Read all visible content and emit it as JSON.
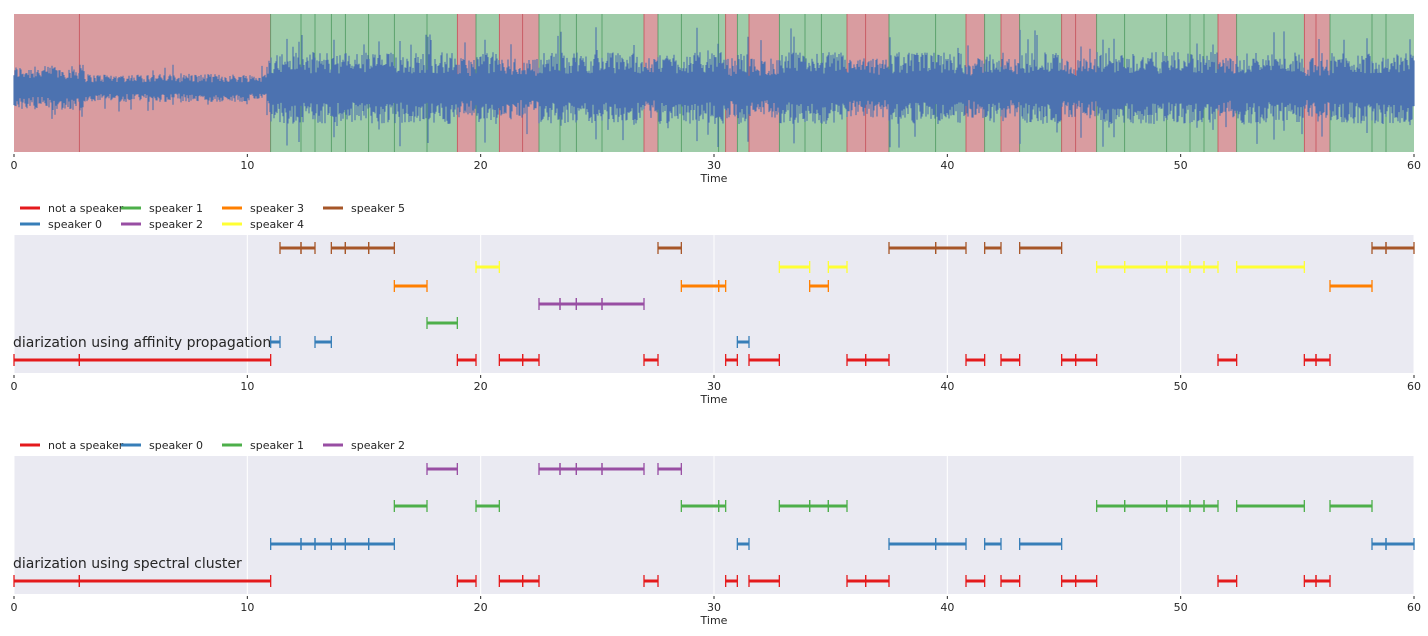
{
  "chart_data": [
    {
      "type": "area",
      "description_role": "waveform",
      "xlabel": "Time",
      "xlim": [
        0,
        60
      ],
      "xticks": [
        0,
        10,
        20,
        30,
        40,
        50,
        60
      ],
      "waveform_color": "#4c72b0",
      "segment_colors": {
        "speech": "#9fcca9",
        "nonspeech": "#d99ca0"
      },
      "nonspeech_segments": [
        [
          0,
          11.0
        ],
        [
          19.0,
          19.8
        ],
        [
          20.8,
          22.5
        ],
        [
          27.0,
          27.6
        ],
        [
          30.5,
          31.0
        ],
        [
          31.5,
          32.8
        ],
        [
          35.7,
          37.5
        ],
        [
          40.8,
          41.6
        ],
        [
          42.3,
          43.1
        ],
        [
          44.9,
          46.4
        ],
        [
          51.6,
          52.4
        ],
        [
          55.3,
          56.4
        ]
      ],
      "boundaries": [
        2.8,
        11.0,
        12.3,
        12.9,
        13.6,
        14.2,
        15.2,
        16.3,
        17.7,
        19.0,
        19.8,
        20.8,
        21.8,
        22.5,
        23.4,
        24.1,
        25.2,
        27.0,
        27.6,
        28.6,
        30.2,
        30.5,
        31.0,
        31.5,
        32.8,
        33.9,
        34.6,
        35.7,
        36.5,
        37.5,
        39.5,
        40.8,
        41.6,
        42.3,
        43.1,
        44.9,
        45.5,
        46.4,
        47.6,
        49.4,
        50.4,
        51.0,
        51.6,
        52.4,
        55.3,
        55.8,
        56.4,
        58.2,
        58.8
      ]
    },
    {
      "type": "gantt",
      "title": "diarization using affinity propagation",
      "xlabel": "Time",
      "xlim": [
        0,
        60
      ],
      "xticks": [
        0,
        10,
        20,
        30,
        40,
        50,
        60
      ],
      "legend": [
        {
          "label": "not a speaker",
          "color": "#e41a1c"
        },
        {
          "label": "speaker 0",
          "color": "#377eb8"
        },
        {
          "label": "speaker 1",
          "color": "#4daf4a"
        },
        {
          "label": "speaker 2",
          "color": "#984ea3"
        },
        {
          "label": "speaker 3",
          "color": "#ff7f00"
        },
        {
          "label": "speaker 4",
          "color": "#ffff33"
        },
        {
          "label": "speaker 5",
          "color": "#a65628"
        }
      ],
      "series": [
        {
          "name": "not a speaker",
          "segments": [
            [
              0,
              2.8
            ],
            [
              2.8,
              11.0
            ],
            [
              19.0,
              19.8
            ],
            [
              20.8,
              21.8
            ],
            [
              21.8,
              22.5
            ],
            [
              27.0,
              27.6
            ],
            [
              30.5,
              31.0
            ],
            [
              31.5,
              32.8
            ],
            [
              35.7,
              36.5
            ],
            [
              36.5,
              37.5
            ],
            [
              40.8,
              41.6
            ],
            [
              42.3,
              43.1
            ],
            [
              44.9,
              45.5
            ],
            [
              45.5,
              46.4
            ],
            [
              51.6,
              52.4
            ],
            [
              55.3,
              55.8
            ],
            [
              55.8,
              56.4
            ]
          ]
        },
        {
          "name": "speaker 0",
          "segments": [
            [
              11.0,
              11.4
            ],
            [
              12.9,
              13.6
            ],
            [
              31.0,
              31.5
            ]
          ]
        },
        {
          "name": "speaker 1",
          "segments": [
            [
              17.7,
              19.0
            ]
          ]
        },
        {
          "name": "speaker 2",
          "segments": [
            [
              22.5,
              23.4
            ],
            [
              23.4,
              24.1
            ],
            [
              24.1,
              25.2
            ],
            [
              25.2,
              27.0
            ]
          ]
        },
        {
          "name": "speaker 3",
          "segments": [
            [
              16.3,
              17.7
            ],
            [
              28.6,
              30.2
            ],
            [
              30.2,
              30.5
            ],
            [
              34.1,
              34.9
            ],
            [
              56.4,
              58.2
            ]
          ]
        },
        {
          "name": "speaker 4",
          "segments": [
            [
              19.8,
              20.8
            ],
            [
              32.8,
              34.1
            ],
            [
              34.9,
              35.7
            ],
            [
              46.4,
              47.6
            ],
            [
              47.6,
              49.4
            ],
            [
              49.4,
              50.4
            ],
            [
              50.4,
              51.0
            ],
            [
              51.0,
              51.6
            ],
            [
              52.4,
              55.3
            ]
          ]
        },
        {
          "name": "speaker 5",
          "segments": [
            [
              11.4,
              12.3
            ],
            [
              12.3,
              12.9
            ],
            [
              13.6,
              14.2
            ],
            [
              14.2,
              15.2
            ],
            [
              15.2,
              16.3
            ],
            [
              27.6,
              28.6
            ],
            [
              37.5,
              39.5
            ],
            [
              39.5,
              40.8
            ],
            [
              41.6,
              42.3
            ],
            [
              43.1,
              44.9
            ],
            [
              58.2,
              58.8
            ],
            [
              58.8,
              60
            ]
          ]
        }
      ]
    },
    {
      "type": "gantt",
      "title": "diarization using spectral cluster",
      "xlabel": "Time",
      "xlim": [
        0,
        60
      ],
      "xticks": [
        0,
        10,
        20,
        30,
        40,
        50,
        60
      ],
      "legend": [
        {
          "label": "not a speaker",
          "color": "#e41a1c"
        },
        {
          "label": "speaker 0",
          "color": "#377eb8"
        },
        {
          "label": "speaker 1",
          "color": "#4daf4a"
        },
        {
          "label": "speaker 2",
          "color": "#984ea3"
        }
      ],
      "series": [
        {
          "name": "not a speaker",
          "segments": [
            [
              0,
              2.8
            ],
            [
              2.8,
              11.0
            ],
            [
              19.0,
              19.8
            ],
            [
              20.8,
              21.8
            ],
            [
              21.8,
              22.5
            ],
            [
              27.0,
              27.6
            ],
            [
              30.5,
              31.0
            ],
            [
              31.5,
              32.8
            ],
            [
              35.7,
              36.5
            ],
            [
              36.5,
              37.5
            ],
            [
              40.8,
              41.6
            ],
            [
              42.3,
              43.1
            ],
            [
              44.9,
              45.5
            ],
            [
              45.5,
              46.4
            ],
            [
              51.6,
              52.4
            ],
            [
              55.3,
              55.8
            ],
            [
              55.8,
              56.4
            ]
          ]
        },
        {
          "name": "speaker 0",
          "segments": [
            [
              11.0,
              12.3
            ],
            [
              12.3,
              12.9
            ],
            [
              12.9,
              13.6
            ],
            [
              13.6,
              14.2
            ],
            [
              14.2,
              15.2
            ],
            [
              15.2,
              16.3
            ],
            [
              31.0,
              31.5
            ],
            [
              37.5,
              39.5
            ],
            [
              39.5,
              40.8
            ],
            [
              41.6,
              42.3
            ],
            [
              43.1,
              44.9
            ],
            [
              58.2,
              58.8
            ],
            [
              58.8,
              60
            ]
          ]
        },
        {
          "name": "speaker 1",
          "segments": [
            [
              16.3,
              17.7
            ],
            [
              19.8,
              20.8
            ],
            [
              28.6,
              30.2
            ],
            [
              30.2,
              30.5
            ],
            [
              32.8,
              34.1
            ],
            [
              34.1,
              34.9
            ],
            [
              34.9,
              35.7
            ],
            [
              46.4,
              47.6
            ],
            [
              47.6,
              49.4
            ],
            [
              49.4,
              50.4
            ],
            [
              50.4,
              51.0
            ],
            [
              51.0,
              51.6
            ],
            [
              52.4,
              55.3
            ],
            [
              56.4,
              58.2
            ]
          ]
        },
        {
          "name": "speaker 2",
          "segments": [
            [
              17.7,
              19.0
            ],
            [
              22.5,
              23.4
            ],
            [
              23.4,
              24.1
            ],
            [
              24.1,
              25.2
            ],
            [
              25.2,
              27.0
            ],
            [
              27.6,
              28.6
            ]
          ]
        }
      ]
    }
  ]
}
